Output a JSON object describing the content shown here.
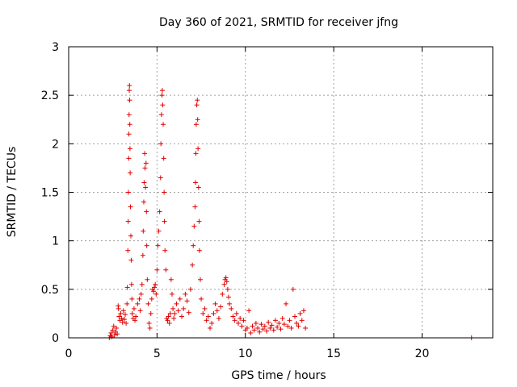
{
  "chart_data": {
    "type": "scatter",
    "title": "Day 360 of 2021, SRMTID for receiver jfng",
    "xlabel": "GPS time / hours",
    "ylabel": "SRMTID / TECUs",
    "xlim": [
      0,
      24
    ],
    "ylim": [
      0,
      3
    ],
    "xticks": [
      0,
      5,
      10,
      15,
      20
    ],
    "xtick_labels": [
      "0",
      "5",
      "10",
      "15",
      "20"
    ],
    "yticks": [
      0,
      0.5,
      1,
      1.5,
      2,
      2.5,
      3
    ],
    "ytick_labels": [
      "0",
      "0.5",
      "1",
      "1.5",
      "2",
      "2.5",
      "3"
    ],
    "grid": true,
    "marker": "+",
    "color": "#e00000",
    "series": [
      {
        "name": "SRMTID",
        "points": [
          [
            2.3,
            0.0
          ],
          [
            2.35,
            0.02
          ],
          [
            2.4,
            0.05
          ],
          [
            2.45,
            0.01
          ],
          [
            2.5,
            0.08
          ],
          [
            2.55,
            0.12
          ],
          [
            2.6,
            0.03
          ],
          [
            2.65,
            0.06
          ],
          [
            2.7,
            0.1
          ],
          [
            2.75,
            0.04
          ],
          [
            2.8,
            0.33
          ],
          [
            2.82,
            0.3
          ],
          [
            2.85,
            0.22
          ],
          [
            2.9,
            0.18
          ],
          [
            2.95,
            0.25
          ],
          [
            3.0,
            0.2
          ],
          [
            3.05,
            0.16
          ],
          [
            3.1,
            0.28
          ],
          [
            3.15,
            0.19
          ],
          [
            3.2,
            0.24
          ],
          [
            3.25,
            0.15
          ],
          [
            3.3,
            0.35
          ],
          [
            3.32,
            0.52
          ],
          [
            3.35,
            0.9
          ],
          [
            3.37,
            1.2
          ],
          [
            3.38,
            1.5
          ],
          [
            3.4,
            1.85
          ],
          [
            3.41,
            2.1
          ],
          [
            3.42,
            2.3
          ],
          [
            3.43,
            2.55
          ],
          [
            3.44,
            2.6
          ],
          [
            3.45,
            2.45
          ],
          [
            3.46,
            2.2
          ],
          [
            3.47,
            1.95
          ],
          [
            3.48,
            1.7
          ],
          [
            3.5,
            1.35
          ],
          [
            3.52,
            1.05
          ],
          [
            3.54,
            0.8
          ],
          [
            3.56,
            0.55
          ],
          [
            3.58,
            0.4
          ],
          [
            3.6,
            0.25
          ],
          [
            3.65,
            0.2
          ],
          [
            3.7,
            0.3
          ],
          [
            3.75,
            0.18
          ],
          [
            3.8,
            0.22
          ],
          [
            3.9,
            0.35
          ],
          [
            4.0,
            0.4
          ],
          [
            4.05,
            0.28
          ],
          [
            4.1,
            0.45
          ],
          [
            4.15,
            0.55
          ],
          [
            4.2,
            0.85
          ],
          [
            4.22,
            1.1
          ],
          [
            4.25,
            1.4
          ],
          [
            4.27,
            1.6
          ],
          [
            4.3,
            1.9
          ],
          [
            4.32,
            1.75
          ],
          [
            4.35,
            1.55
          ],
          [
            4.38,
            1.8
          ],
          [
            4.4,
            1.3
          ],
          [
            4.42,
            0.95
          ],
          [
            4.45,
            0.6
          ],
          [
            4.5,
            0.35
          ],
          [
            4.55,
            0.15
          ],
          [
            4.6,
            0.1
          ],
          [
            4.65,
            0.25
          ],
          [
            4.7,
            0.4
          ],
          [
            4.75,
            0.5
          ],
          [
            4.8,
            0.48
          ],
          [
            4.85,
            0.52
          ],
          [
            4.9,
            0.55
          ],
          [
            4.95,
            0.45
          ],
          [
            5.0,
            0.7
          ],
          [
            5.05,
            0.95
          ],
          [
            5.1,
            1.1
          ],
          [
            5.15,
            1.3
          ],
          [
            5.2,
            1.65
          ],
          [
            5.22,
            2.0
          ],
          [
            5.25,
            2.3
          ],
          [
            5.28,
            2.5
          ],
          [
            5.3,
            2.55
          ],
          [
            5.32,
            2.4
          ],
          [
            5.35,
            2.2
          ],
          [
            5.38,
            1.85
          ],
          [
            5.4,
            1.5
          ],
          [
            5.42,
            1.2
          ],
          [
            5.45,
            0.9
          ],
          [
            5.5,
            0.7
          ],
          [
            5.55,
            0.2
          ],
          [
            5.6,
            0.18
          ],
          [
            5.65,
            0.22
          ],
          [
            5.7,
            0.15
          ],
          [
            5.75,
            0.25
          ],
          [
            5.8,
            0.6
          ],
          [
            5.85,
            0.45
          ],
          [
            5.9,
            0.3
          ],
          [
            5.95,
            0.2
          ],
          [
            6.0,
            0.25
          ],
          [
            6.1,
            0.35
          ],
          [
            6.2,
            0.28
          ],
          [
            6.3,
            0.4
          ],
          [
            6.4,
            0.22
          ],
          [
            6.5,
            0.3
          ],
          [
            6.6,
            0.45
          ],
          [
            6.7,
            0.38
          ],
          [
            6.8,
            0.26
          ],
          [
            6.9,
            0.5
          ],
          [
            7.0,
            0.75
          ],
          [
            7.05,
            0.95
          ],
          [
            7.1,
            1.15
          ],
          [
            7.15,
            1.35
          ],
          [
            7.18,
            1.6
          ],
          [
            7.2,
            1.9
          ],
          [
            7.22,
            2.2
          ],
          [
            7.25,
            2.4
          ],
          [
            7.28,
            2.45
          ],
          [
            7.3,
            2.25
          ],
          [
            7.32,
            1.95
          ],
          [
            7.35,
            1.55
          ],
          [
            7.38,
            1.2
          ],
          [
            7.4,
            0.9
          ],
          [
            7.45,
            0.6
          ],
          [
            7.5,
            0.4
          ],
          [
            7.6,
            0.25
          ],
          [
            7.7,
            0.3
          ],
          [
            7.8,
            0.18
          ],
          [
            7.9,
            0.22
          ],
          [
            8.0,
            0.1
          ],
          [
            8.1,
            0.15
          ],
          [
            8.2,
            0.25
          ],
          [
            8.3,
            0.35
          ],
          [
            8.4,
            0.28
          ],
          [
            8.5,
            0.2
          ],
          [
            8.6,
            0.32
          ],
          [
            8.7,
            0.45
          ],
          [
            8.8,
            0.55
          ],
          [
            8.85,
            0.6
          ],
          [
            8.9,
            0.62
          ],
          [
            8.95,
            0.58
          ],
          [
            9.0,
            0.5
          ],
          [
            9.05,
            0.42
          ],
          [
            9.1,
            0.35
          ],
          [
            9.2,
            0.3
          ],
          [
            9.3,
            0.22
          ],
          [
            9.4,
            0.18
          ],
          [
            9.5,
            0.25
          ],
          [
            9.6,
            0.15
          ],
          [
            9.7,
            0.2
          ],
          [
            9.8,
            0.12
          ],
          [
            9.9,
            0.18
          ],
          [
            10.0,
            0.08
          ],
          [
            10.1,
            0.1
          ],
          [
            10.2,
            0.28
          ],
          [
            10.3,
            0.05
          ],
          [
            10.4,
            0.12
          ],
          [
            10.5,
            0.08
          ],
          [
            10.6,
            0.15
          ],
          [
            10.7,
            0.1
          ],
          [
            10.8,
            0.06
          ],
          [
            10.9,
            0.14
          ],
          [
            11.0,
            0.09
          ],
          [
            11.1,
            0.12
          ],
          [
            11.2,
            0.07
          ],
          [
            11.3,
            0.16
          ],
          [
            11.4,
            0.1
          ],
          [
            11.5,
            0.13
          ],
          [
            11.6,
            0.08
          ],
          [
            11.7,
            0.18
          ],
          [
            11.8,
            0.11
          ],
          [
            11.9,
            0.15
          ],
          [
            12.0,
            0.09
          ],
          [
            12.1,
            0.2
          ],
          [
            12.2,
            0.14
          ],
          [
            12.3,
            0.35
          ],
          [
            12.4,
            0.12
          ],
          [
            12.5,
            0.18
          ],
          [
            12.6,
            0.1
          ],
          [
            12.7,
            0.5
          ],
          [
            12.8,
            0.22
          ],
          [
            12.9,
            0.15
          ],
          [
            13.0,
            0.12
          ],
          [
            13.1,
            0.25
          ],
          [
            13.2,
            0.18
          ],
          [
            13.3,
            0.28
          ],
          [
            13.4,
            0.1
          ],
          [
            22.8,
            0.0
          ]
        ]
      }
    ]
  }
}
